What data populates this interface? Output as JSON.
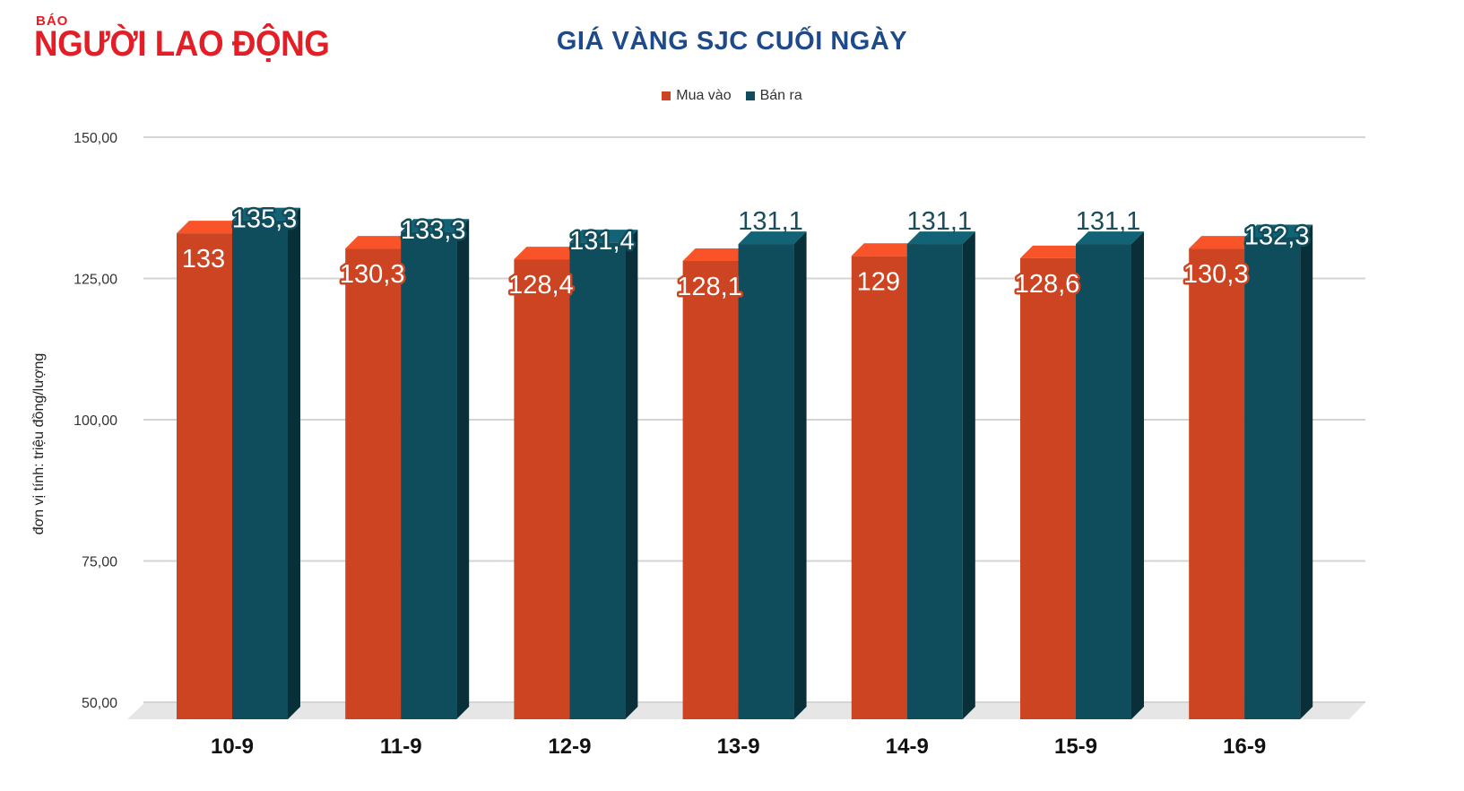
{
  "brand": {
    "small": "BÁO",
    "main": "NGƯỜI LAO ĐỘNG"
  },
  "colors": {
    "buy": "#cc4422",
    "sell": "#0f4d5c",
    "title": "#1d4a8c",
    "brand": "#e41e26"
  },
  "chart_data": {
    "type": "bar",
    "title": "GIÁ VÀNG SJC CUỐI NGÀY",
    "xlabel": "",
    "ylabel": "đơn vị tính: triệu đồng/lượng",
    "categories": [
      "10-9",
      "11-9",
      "12-9",
      "13-9",
      "14-9",
      "15-9",
      "16-9"
    ],
    "series": [
      {
        "name": "Mua vào",
        "values": [
          133,
          130.3,
          128.4,
          128.1,
          129,
          128.6,
          130.3
        ]
      },
      {
        "name": "Bán ra",
        "values": [
          135.3,
          133.3,
          131.4,
          131.1,
          131.1,
          131.1,
          132.3
        ]
      }
    ],
    "ylim": [
      50,
      150
    ],
    "yticks": [
      "50,00",
      "75,00",
      "100,00",
      "125,00",
      "150,00"
    ],
    "grid": true,
    "legend": "top-center"
  }
}
